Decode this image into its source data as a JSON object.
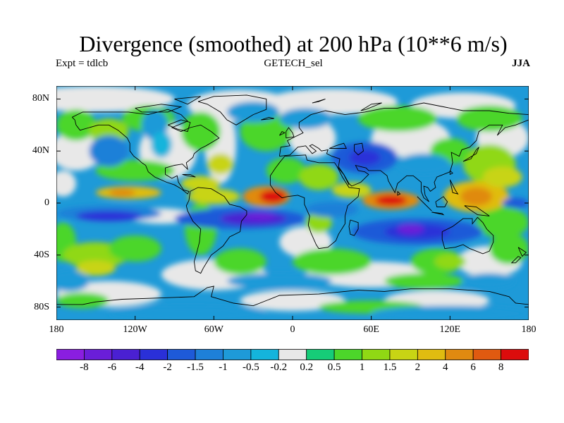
{
  "header": {
    "title": "Divergence (smoothed) at 200 hPa (10**6 m/s)",
    "left_label": "Expt = tdlcb",
    "center_label": "GETECH_sel",
    "right_label": "JJA"
  },
  "map": {
    "projection": "cylindrical-equidistant",
    "lon_range": [
      -180,
      180
    ],
    "lat_range": [
      -90,
      90
    ],
    "lat_ticks": [
      {
        "value": 80,
        "label": "80N"
      },
      {
        "value": 40,
        "label": "40N"
      },
      {
        "value": 0,
        "label": "0"
      },
      {
        "value": -40,
        "label": "40S"
      },
      {
        "value": -80,
        "label": "80S"
      }
    ],
    "lon_ticks": [
      {
        "value": -180,
        "label": "180"
      },
      {
        "value": -120,
        "label": "120W"
      },
      {
        "value": -60,
        "label": "60W"
      },
      {
        "value": 0,
        "label": "0"
      },
      {
        "value": 60,
        "label": "60E"
      },
      {
        "value": 120,
        "label": "120E"
      },
      {
        "value": 180,
        "label": "180"
      }
    ]
  },
  "colorbar": {
    "labels": [
      "-8",
      "-6",
      "-4",
      "-2",
      "-1.5",
      "-1",
      "-0.5",
      "-0.2",
      "0.2",
      "0.5",
      "1",
      "1.5",
      "2",
      "4",
      "6",
      "8"
    ],
    "colors": [
      "#8a1ee0",
      "#6a1ed8",
      "#4a20d2",
      "#2a30d8",
      "#1e5ad8",
      "#1e80d8",
      "#1e9ad8",
      "#14b4dc",
      "#e8e8e8",
      "#16cc78",
      "#4cd62a",
      "#90d814",
      "#c8d414",
      "#e0bc10",
      "#e08a10",
      "#e05a10",
      "#dc0c0c"
    ]
  },
  "chart_data": {
    "type": "heatmap",
    "title": "Divergence (smoothed) at 200 hPa (10**6 m/s)",
    "subtitle_left": "Expt = tdlcb",
    "subtitle_center": "GETECH_sel",
    "season": "JJA",
    "contour_levels": [
      -8,
      -6,
      -4,
      -2,
      -1.5,
      -1,
      -0.5,
      -0.2,
      0.2,
      0.5,
      1,
      1.5,
      2,
      4,
      6,
      8
    ],
    "x_range": [
      -180,
      180
    ],
    "y_range": [
      -90,
      90
    ],
    "features": [
      {
        "name": "strong divergence",
        "lon_center": -20,
        "lat_center": 5,
        "value": 8
      },
      {
        "name": "strong divergence",
        "lon_center": 75,
        "lat_center": 2,
        "value": 6
      },
      {
        "name": "divergence",
        "lon_center": 140,
        "lat_center": 5,
        "value": 4
      },
      {
        "name": "divergence",
        "lon_center": -125,
        "lat_center": 8,
        "value": 4
      },
      {
        "name": "strong convergence",
        "lon_center": -30,
        "lat_center": -12,
        "value": -8
      },
      {
        "name": "strong convergence",
        "lon_center": 95,
        "lat_center": -22,
        "value": -6
      },
      {
        "name": "convergence",
        "lon_center": 55,
        "lat_center": 35,
        "value": -4
      },
      {
        "name": "convergence",
        "lon_center": -140,
        "lat_center": -8,
        "value": -4
      }
    ]
  }
}
